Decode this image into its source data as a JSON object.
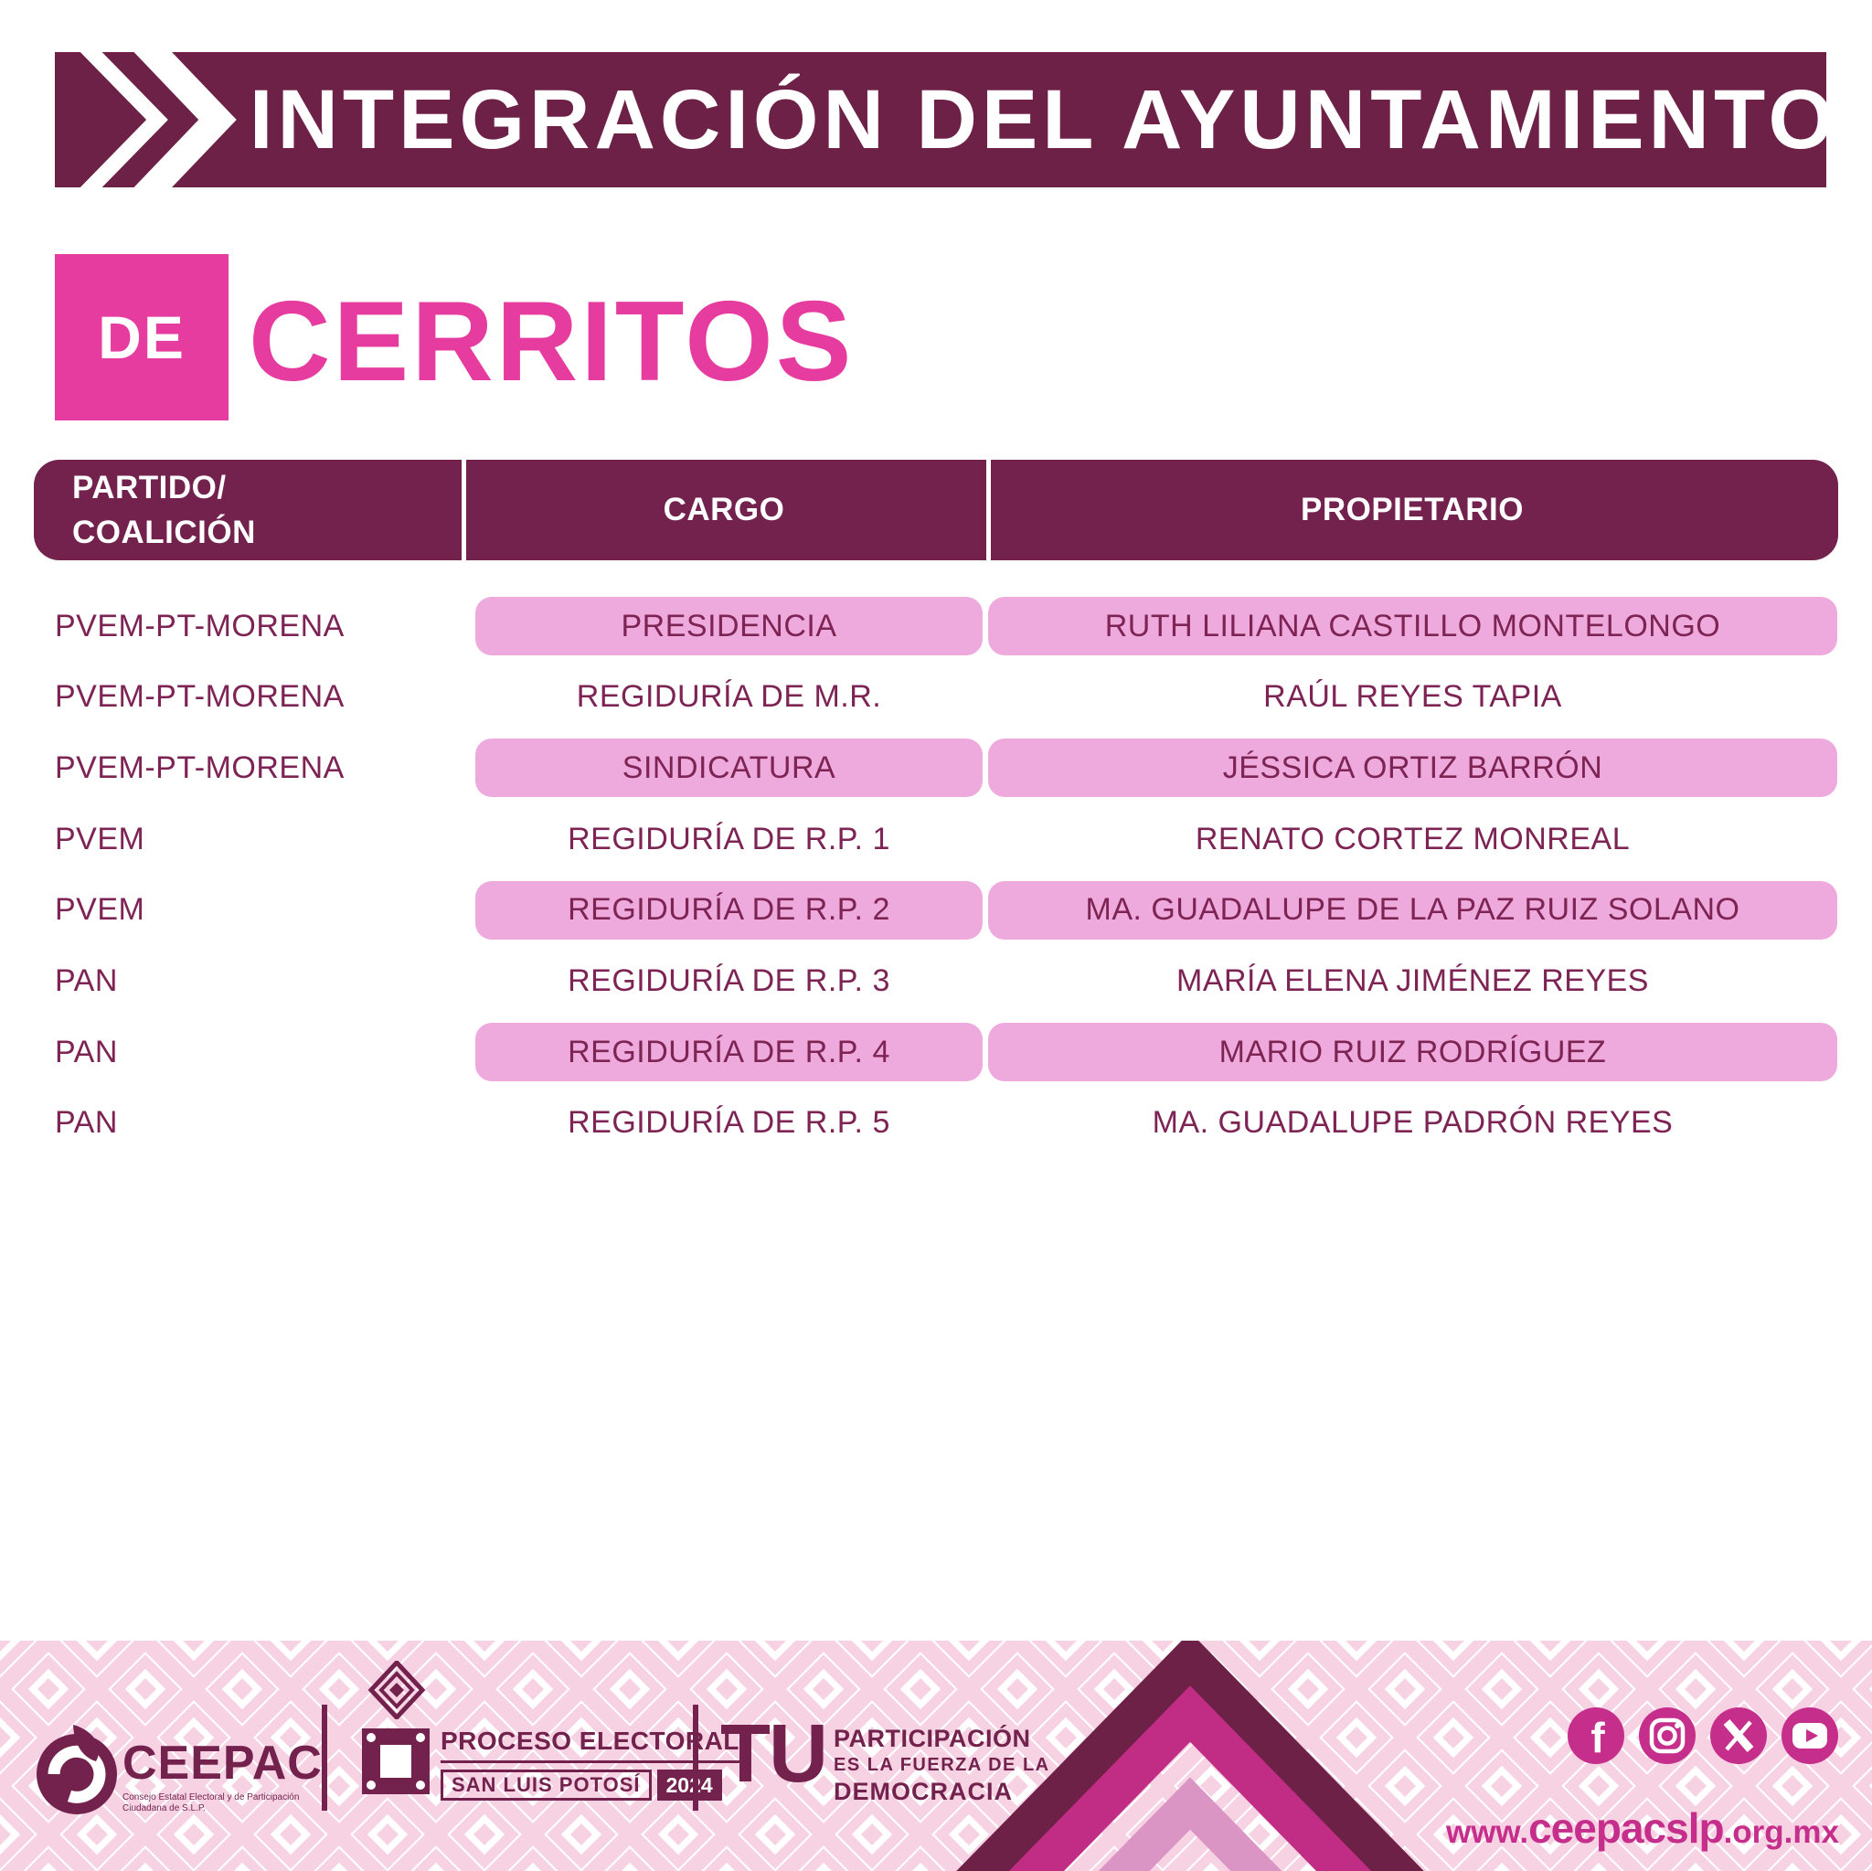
{
  "header": {
    "title": "INTEGRACIÓN DEL AYUNTAMIENTO"
  },
  "subtitle": {
    "de": "DE",
    "municipality": "CERRITOS"
  },
  "table": {
    "col1_line1": "PARTIDO/",
    "col1_line2": "COALICIÓN",
    "col2": "CARGO",
    "col3": "PROPIETARIO",
    "rows": [
      {
        "party": "PVEM-PT-MORENA",
        "cargo": "PRESIDENCIA",
        "propietario": "RUTH LILIANA CASTILLO MONTELONGO",
        "highlight": true
      },
      {
        "party": "PVEM-PT-MORENA",
        "cargo": "REGIDURÍA DE M.R.",
        "propietario": "RAÚL REYES TAPIA",
        "highlight": false
      },
      {
        "party": "PVEM-PT-MORENA",
        "cargo": "SINDICATURA",
        "propietario": "JÉSSICA ORTIZ BARRÓN",
        "highlight": true
      },
      {
        "party": "PVEM",
        "cargo": "REGIDURÍA DE R.P. 1",
        "propietario": "RENATO CORTEZ MONREAL",
        "highlight": false
      },
      {
        "party": "PVEM",
        "cargo": "REGIDURÍA DE R.P. 2",
        "propietario": "MA. GUADALUPE DE LA PAZ RUIZ SOLANO",
        "highlight": true
      },
      {
        "party": "PAN",
        "cargo": "REGIDURÍA DE R.P. 3",
        "propietario": "MARÍA ELENA  JIMÉNEZ  REYES",
        "highlight": false
      },
      {
        "party": "PAN",
        "cargo": "REGIDURÍA DE R.P. 4",
        "propietario": "MARIO RUIZ RODRÍGUEZ",
        "highlight": true
      },
      {
        "party": "PAN",
        "cargo": "REGIDURÍA DE R.P. 5",
        "propietario": "MA. GUADALUPE PADRÓN REYES",
        "highlight": false
      }
    ]
  },
  "footer": {
    "ceepac": {
      "name": "CEEPAC",
      "tagline": "Consejo Estatal Electoral y de Participación Ciudadana de S.L.P."
    },
    "proceso": {
      "line1": "PROCESO ELECTORAL",
      "line2": "SAN LUIS POTOSÍ",
      "year": "2024"
    },
    "slogan": {
      "big": "TU",
      "line1": "PARTICIPACIÓN",
      "line2": "ES LA FUERZA DE LA",
      "line3": "DEMOCRACIA"
    },
    "social": [
      "facebook",
      "instagram",
      "x",
      "youtube"
    ],
    "url": {
      "pre": "www.",
      "bold": "ceepacslp",
      "post": ".org.mx"
    }
  },
  "colors": {
    "banner_maroon": "#6e2147",
    "table_header_maroon": "#73224d",
    "row_text_maroon": "#7d2454",
    "pink_cell": "#eeaadc",
    "bright_pink": "#e73c9f",
    "social_magenta": "#c62e8c",
    "chevron_dark": "#6e2147",
    "chevron_magenta": "#c12d84",
    "chevron_light": "#da95c4",
    "pattern_pink": "#f6d2e3"
  }
}
